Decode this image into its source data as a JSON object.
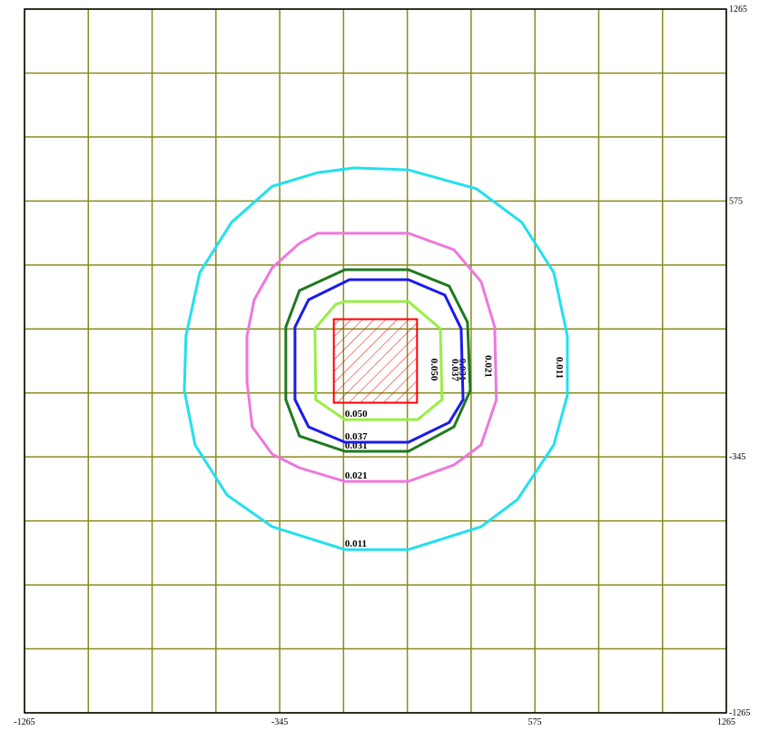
{
  "chart_data": {
    "type": "contour",
    "xlim": [
      -1265,
      1265
    ],
    "ylim": [
      -1265,
      1265
    ],
    "xticks": [
      -1265,
      -345,
      575,
      1265
    ],
    "yticks": [
      -1265,
      -345,
      575,
      1265
    ],
    "xgrid": [
      -1265,
      -1035,
      -805,
      -575,
      -345,
      -115,
      115,
      345,
      575,
      805,
      1035,
      1265
    ],
    "ygrid": [
      -1265,
      -1035,
      -805,
      -575,
      -345,
      -115,
      115,
      345,
      575,
      805,
      1035,
      1265
    ],
    "grid_color": "#8a8a1e",
    "source": {
      "color": "#ff0000",
      "x": [
        -150,
        150,
        150,
        -150
      ],
      "y": [
        150,
        150,
        -150,
        -150
      ]
    },
    "contours": [
      {
        "label": "0.011",
        "color": "#22e0ee",
        "x": [
          -77,
          119,
          364,
          528,
          643,
          692,
          692,
          643,
          512,
          381,
          119,
          -110,
          -372,
          -535,
          -650,
          -689,
          -683,
          -633,
          -519,
          -372,
          -208
        ],
        "y": [
          694,
          687,
          619,
          498,
          318,
          90,
          -123,
          -302,
          -498,
          -596,
          -678,
          -678,
          -596,
          -482,
          -302,
          -106,
          90,
          318,
          498,
          628,
          677
        ]
      },
      {
        "label": "0.021",
        "color": "#ee77dd",
        "x": [
          -208,
          119,
          283,
          381,
          430,
          436,
          381,
          283,
          119,
          -110,
          -274,
          -372,
          -444,
          -463,
          -463,
          -437,
          -372,
          -274
        ],
        "y": [
          459,
          459,
          400,
          285,
          122,
          -139,
          -302,
          -374,
          -433,
          -433,
          -384,
          -335,
          -237,
          -74,
          90,
          220,
          335,
          423
        ]
      },
      {
        "label": "0.031",
        "color": "#1e7a1e",
        "x": [
          -110,
          119,
          266,
          332,
          342,
          283,
          119,
          -110,
          -274,
          -323,
          -323,
          -274
        ],
        "y": [
          328,
          328,
          269,
          139,
          -106,
          -237,
          -325,
          -325,
          -270,
          -139,
          122,
          253
        ]
      },
      {
        "label": "0.037",
        "color": "#1a1aee",
        "x": [
          -94,
          119,
          250,
          309,
          316,
          266,
          119,
          -110,
          -241,
          -290,
          -290,
          -241
        ],
        "y": [
          292,
          292,
          237,
          116,
          -139,
          -221,
          -292,
          -292,
          -237,
          -139,
          122,
          220
        ]
      },
      {
        "label": "0.050",
        "color": "#99ee44",
        "x": [
          -110,
          119,
          234,
          240,
          152,
          -110,
          -215,
          -218,
          -143
        ],
        "y": [
          214,
          214,
          116,
          -139,
          -211,
          -211,
          -139,
          116,
          204
        ]
      }
    ]
  }
}
